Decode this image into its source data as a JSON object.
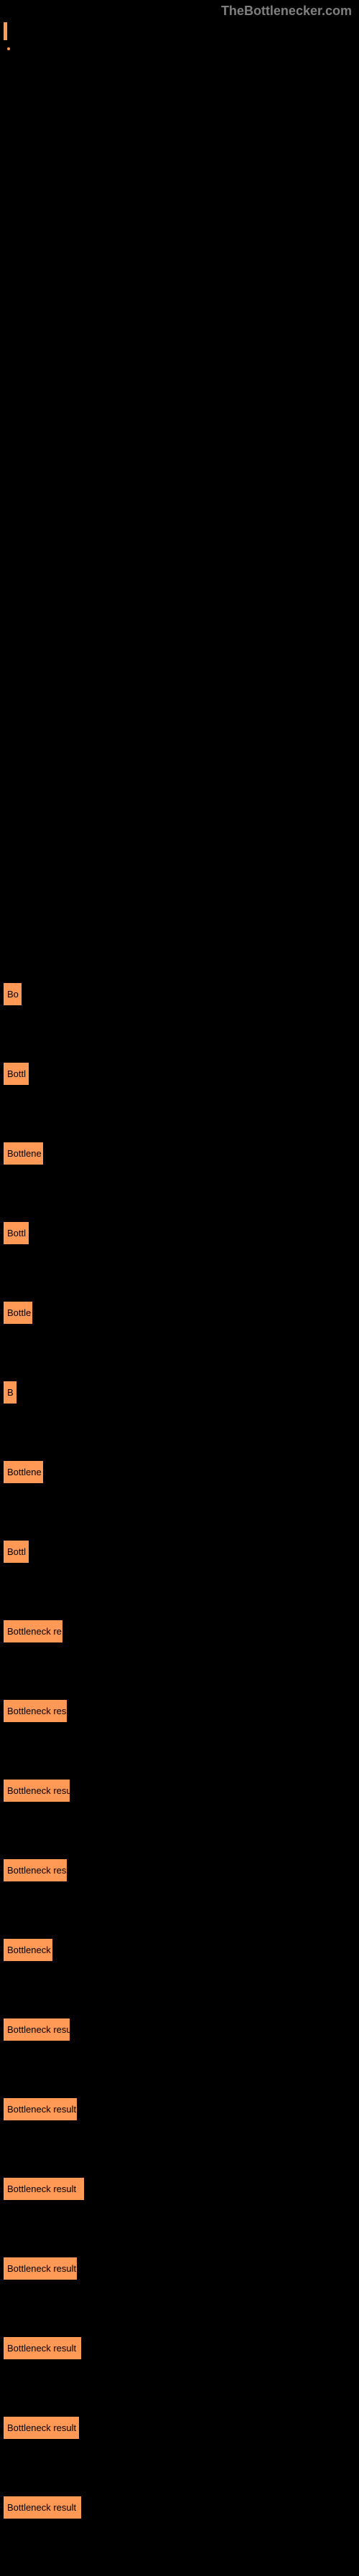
{
  "header": {
    "logo": "TheBottlenecker.com"
  },
  "bars": [
    {
      "label": "Bo",
      "width": 25
    },
    {
      "label": "Bottl",
      "width": 35
    },
    {
      "label": "Bottlene",
      "width": 55
    },
    {
      "label": "Bottl",
      "width": 35
    },
    {
      "label": "Bottle",
      "width": 40
    },
    {
      "label": "B",
      "width": 18
    },
    {
      "label": "Bottlene",
      "width": 55
    },
    {
      "label": "Bottl",
      "width": 35
    },
    {
      "label": "Bottleneck re",
      "width": 82
    },
    {
      "label": "Bottleneck res",
      "width": 88
    },
    {
      "label": "Bottleneck resu",
      "width": 92
    },
    {
      "label": "Bottleneck res",
      "width": 88
    },
    {
      "label": "Bottleneck",
      "width": 68
    },
    {
      "label": "Bottleneck resu",
      "width": 92
    },
    {
      "label": "Bottleneck result",
      "width": 102
    },
    {
      "label": "Bottleneck result",
      "width": 112
    },
    {
      "label": "Bottleneck result",
      "width": 102
    },
    {
      "label": "Bottleneck result",
      "width": 108
    },
    {
      "label": "Bottleneck result",
      "width": 105
    },
    {
      "label": "Bottleneck result",
      "width": 108
    }
  ],
  "colors": {
    "bar_color": "#ff9955",
    "background": "#000000",
    "logo_color": "#808080"
  }
}
